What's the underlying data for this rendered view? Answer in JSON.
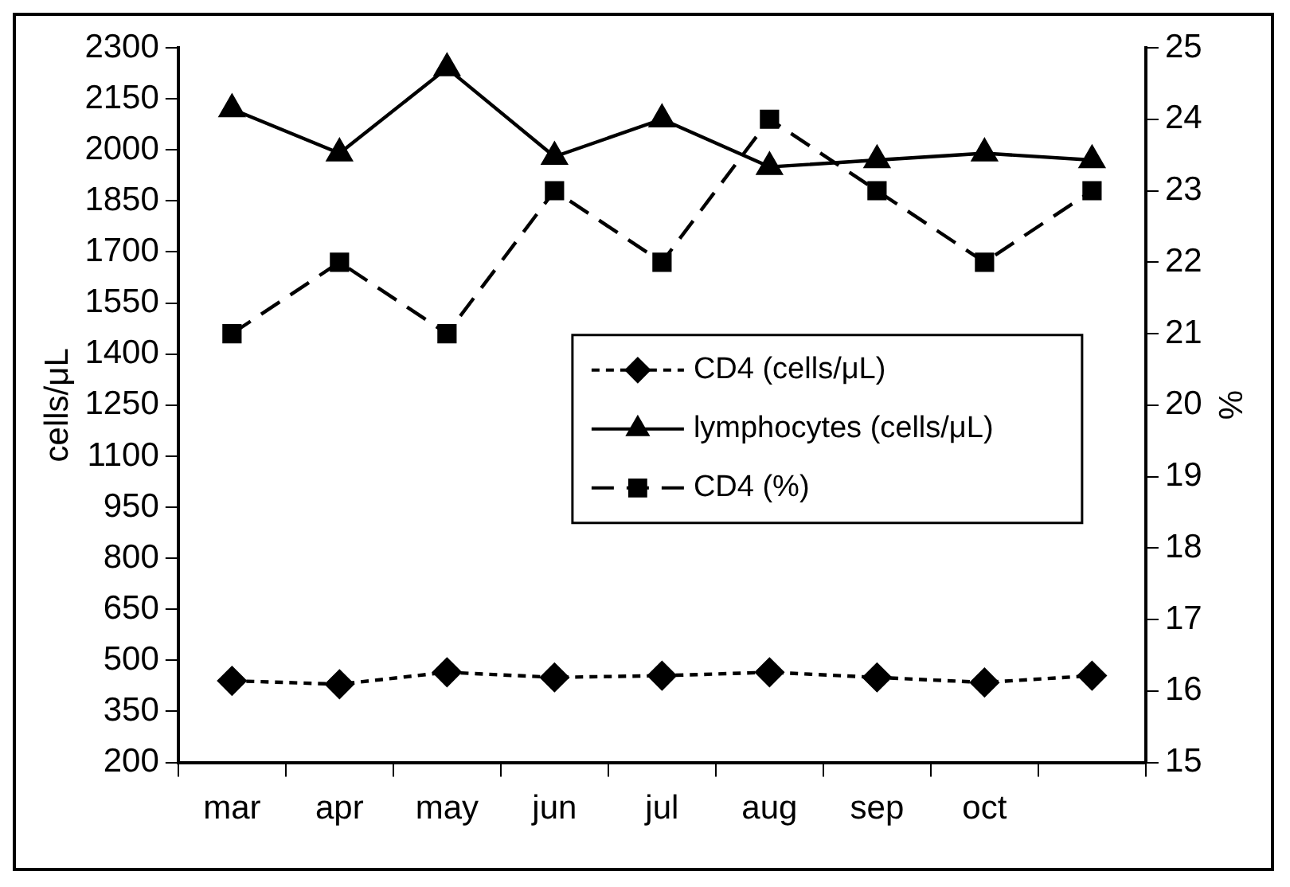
{
  "chart_data": {
    "type": "line",
    "ylabel": "cells/μL",
    "y2label": "%",
    "categories": [
      "mar",
      "apr",
      "may",
      "jun",
      "jul",
      "aug",
      "sep",
      "oct",
      null
    ],
    "series": [
      {
        "name": "CD4 (cells/μL)",
        "color": "#000000",
        "values": [
          440,
          430,
          465,
          450,
          455,
          465,
          450,
          435,
          455
        ],
        "marker": "diamond",
        "line_style": "dotted"
      },
      {
        "name": "lymphocytes (cells/μL)",
        "color": "#000000",
        "values": [
          2120,
          1990,
          2240,
          1980,
          2090,
          1950,
          1970,
          1990,
          1970
        ],
        "marker": "triangle",
        "line_style": "solid"
      },
      {
        "name": "CD4 (%)",
        "color": "#000000",
        "values": [
          21,
          22,
          21,
          23,
          22,
          24,
          23,
          22,
          23
        ],
        "marker": "square",
        "line_style": "dashed",
        "axis": "y2"
      }
    ],
    "ylim": [
      200,
      2300
    ],
    "yticks": [
      200,
      350,
      500,
      650,
      800,
      950,
      1100,
      1250,
      1400,
      1550,
      1700,
      1850,
      2000,
      2150,
      2300
    ],
    "y2lim": [
      15,
      25
    ],
    "y2ticks": [
      15,
      16,
      17,
      18,
      19,
      20,
      21,
      22,
      23,
      24,
      25
    ],
    "grid": false,
    "legend": "right"
  }
}
